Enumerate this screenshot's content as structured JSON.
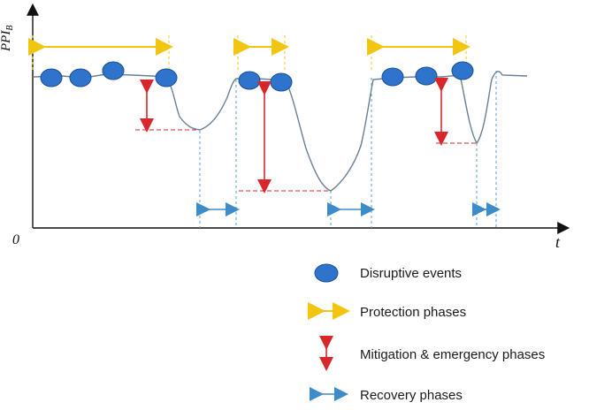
{
  "axes": {
    "y_label_main": "PPI",
    "y_label_sub": "B",
    "x_label": "t",
    "origin_label": "0"
  },
  "legend": {
    "disruptive_events": "Disruptive events",
    "protection_phases": "Protection phases",
    "mitigation_phases": "Mitigation & emergency phases",
    "recovery_phases": "Recovery phases"
  },
  "colors": {
    "curve": "#6a7f95",
    "event": "#2f74cc",
    "event_edge": "#1b4f94",
    "protection": "#f2c511",
    "mitigation": "#d9262b",
    "recovery": "#3d8cc9",
    "dashed_guides": "#5aa0d6",
    "axes": "#111111"
  },
  "icons": {
    "event": "blob-icon",
    "protection": "double-arrow-icon",
    "mitigation": "vertical-double-arrow-icon",
    "recovery": "double-arrow-icon"
  }
}
